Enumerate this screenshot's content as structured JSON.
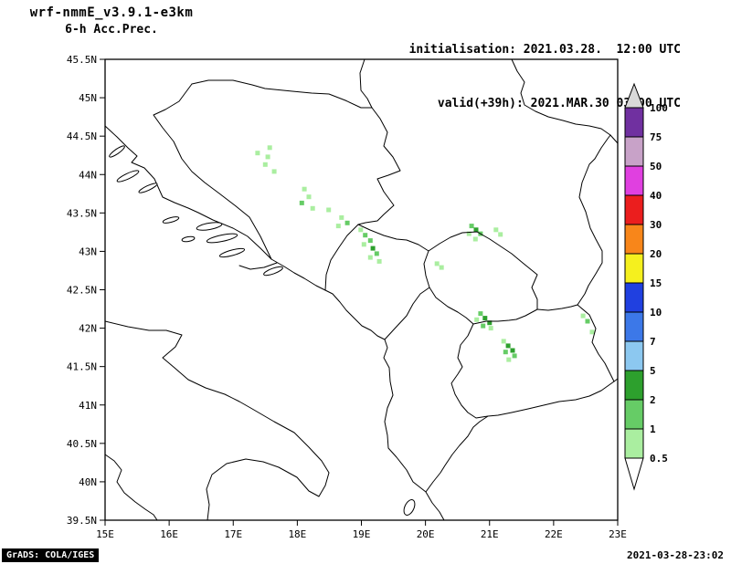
{
  "header": {
    "model_title": "wrf-nmmE_v3.9.1-e3km",
    "field_title": "6-h Acc.Prec.",
    "init_label": "initialisation: 2021.03.28.  12:00 UTC",
    "valid_label": "valid(+39h): 2021.MAR.30 03:00 UTC"
  },
  "map": {
    "extent": {
      "lon_min": 15,
      "lon_max": 23,
      "lat_min": 39.5,
      "lat_max": 45.5
    },
    "lat_ticks": [
      {
        "label": "45.5N",
        "deg": 45.5
      },
      {
        "label": "45N",
        "deg": 45
      },
      {
        "label": "44.5N",
        "deg": 44.5
      },
      {
        "label": "44N",
        "deg": 44
      },
      {
        "label": "43.5N",
        "deg": 43.5
      },
      {
        "label": "43N",
        "deg": 43
      },
      {
        "label": "42.5N",
        "deg": 42.5
      },
      {
        "label": "42N",
        "deg": 42
      },
      {
        "label": "41.5N",
        "deg": 41.5
      },
      {
        "label": "41N",
        "deg": 41
      },
      {
        "label": "40.5N",
        "deg": 40.5
      },
      {
        "label": "40N",
        "deg": 40
      },
      {
        "label": "39.5N",
        "deg": 39.5
      }
    ],
    "lon_ticks": [
      {
        "label": "15E",
        "deg": 15
      },
      {
        "label": "16E",
        "deg": 16
      },
      {
        "label": "17E",
        "deg": 17
      },
      {
        "label": "18E",
        "deg": 18
      },
      {
        "label": "19E",
        "deg": 19
      },
      {
        "label": "20E",
        "deg": 20
      },
      {
        "label": "21E",
        "deg": 21
      },
      {
        "label": "22E",
        "deg": 22
      },
      {
        "label": "23E",
        "deg": 23
      }
    ]
  },
  "colorbar": {
    "labels_top_to_bottom": [
      "100",
      "75",
      "50",
      "40",
      "30",
      "20",
      "15",
      "10",
      "7",
      "5",
      "2",
      "1",
      "0.5"
    ],
    "colors_top_to_bottom": [
      "#d9d9d9",
      "#7030a0",
      "#c8a2c8",
      "#e040e0",
      "#eb1e1e",
      "#f8861a",
      "#f5f01e",
      "#2040e0",
      "#3c78e8",
      "#8cc8f0",
      "#2da02d",
      "#66cc66",
      "#aaeea0",
      "#ffffff"
    ]
  },
  "precip": {
    "units_note": "mm / 6h shading levels",
    "level_colors": {
      "0.5": "#aaeea0",
      "1": "#66cc66",
      "2": "#2da02d"
    },
    "cells": [
      [
        17.38,
        44.28,
        0.5
      ],
      [
        17.57,
        44.35,
        0.5
      ],
      [
        17.54,
        44.23,
        0.5
      ],
      [
        17.5,
        44.13,
        0.5
      ],
      [
        17.64,
        44.04,
        0.5
      ],
      [
        18.11,
        43.81,
        0.5
      ],
      [
        18.18,
        43.71,
        0.5
      ],
      [
        18.07,
        43.63,
        1
      ],
      [
        18.24,
        43.56,
        0.5
      ],
      [
        18.49,
        43.54,
        0.5
      ],
      [
        18.69,
        43.44,
        0.5
      ],
      [
        18.78,
        43.37,
        1
      ],
      [
        18.64,
        43.33,
        0.5
      ],
      [
        18.99,
        43.28,
        0.5
      ],
      [
        19.06,
        43.21,
        1
      ],
      [
        19.14,
        43.14,
        1
      ],
      [
        19.04,
        43.09,
        0.5
      ],
      [
        19.18,
        43.04,
        2
      ],
      [
        19.24,
        42.97,
        1
      ],
      [
        19.14,
        42.92,
        0.5
      ],
      [
        19.28,
        42.87,
        0.5
      ],
      [
        20.72,
        43.33,
        1
      ],
      [
        20.79,
        43.28,
        2
      ],
      [
        20.86,
        43.23,
        1
      ],
      [
        20.68,
        43.23,
        0.5
      ],
      [
        20.78,
        43.16,
        0.5
      ],
      [
        21.1,
        43.28,
        0.5
      ],
      [
        21.17,
        43.22,
        0.5
      ],
      [
        20.18,
        42.84,
        0.5
      ],
      [
        20.25,
        42.79,
        0.5
      ],
      [
        20.86,
        42.19,
        1
      ],
      [
        20.93,
        42.13,
        2
      ],
      [
        21.0,
        42.07,
        2
      ],
      [
        20.9,
        42.03,
        1
      ],
      [
        21.02,
        42.0,
        0.5
      ],
      [
        20.8,
        42.11,
        0.5
      ],
      [
        21.22,
        41.83,
        0.5
      ],
      [
        21.29,
        41.77,
        2
      ],
      [
        21.36,
        41.71,
        2
      ],
      [
        21.25,
        41.69,
        1
      ],
      [
        21.39,
        41.64,
        1
      ],
      [
        21.3,
        41.59,
        0.5
      ],
      [
        22.46,
        42.16,
        0.5
      ],
      [
        22.53,
        42.09,
        1
      ],
      [
        22.6,
        41.95,
        0.5
      ]
    ]
  },
  "footer": {
    "grads_credit": "GrADS: COLA/IGES",
    "timestamp": "2021-03-28-23:02"
  }
}
